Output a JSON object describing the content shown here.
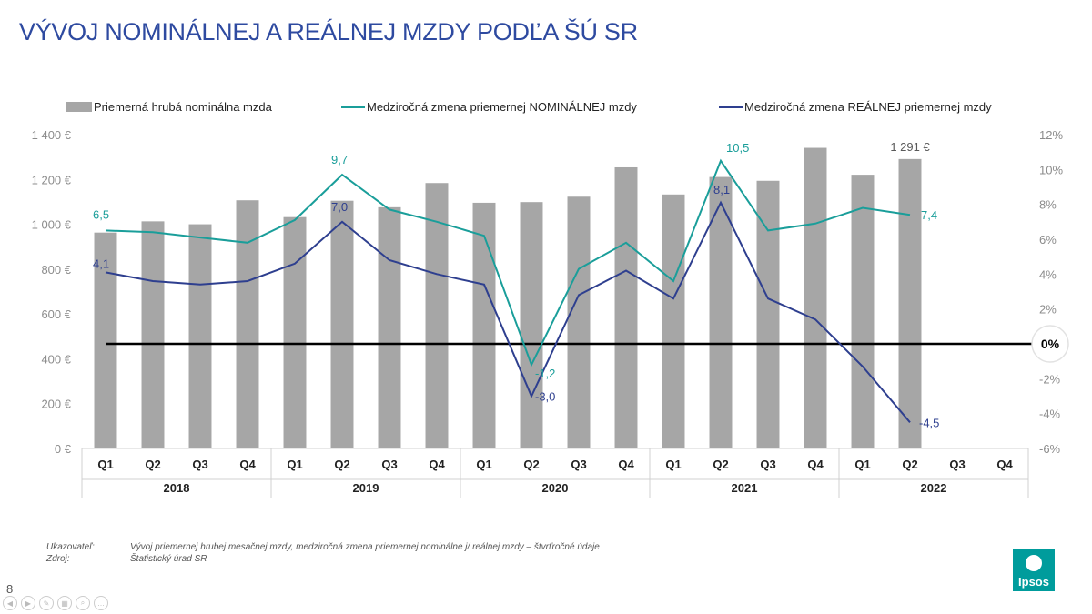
{
  "slide_title": "VÝVOJ NOMINÁLNEJ A REÁLNEJ MZDY PODĽA ŠÚ SR",
  "page_number": "8",
  "footer": {
    "indicator_label": "Ukazovateľ:",
    "indicator_text": "Vývoj priemernej hrubej mesačnej mzdy, medziročná zmena priemernej nominálne j/ reálnej mzdy – štvrťročné údaje",
    "source_label": "Zdroj:",
    "source_text": "Štatistický úrad SR"
  },
  "logo_text": "Ipsos",
  "colors": {
    "bars": "#a6a6a6",
    "nominal": "#1a9e9a",
    "real": "#2e3f8f",
    "zero_line": "#000000",
    "axis_text": "#8c8c8c",
    "title": "#2e4aa0"
  },
  "chart_data": {
    "type": "bar+line",
    "legend": {
      "bars": "Priemerná hrubá nominálna mzda",
      "nominal": "Medziročná zmena priemernej NOMINÁLNEJ mzdy",
      "real": "Medziročná zmena REÁLNEJ priemernej mzdy"
    },
    "quarters": [
      "Q1",
      "Q2",
      "Q3",
      "Q4",
      "Q1",
      "Q2",
      "Q3",
      "Q4",
      "Q1",
      "Q2",
      "Q3",
      "Q4",
      "Q1",
      "Q2",
      "Q3",
      "Q4",
      "Q1",
      "Q2",
      "Q3",
      "Q4"
    ],
    "years": [
      "2018",
      "2019",
      "2020",
      "2021",
      "2022"
    ],
    "wage_eur": [
      963,
      1013,
      1000,
      1107,
      1032,
      1105,
      1076,
      1184,
      1096,
      1099,
      1123,
      1254,
      1133,
      1211,
      1194,
      1341,
      1221,
      1291,
      null,
      null
    ],
    "nominal_pct": [
      6.5,
      6.4,
      6.1,
      5.8,
      7.1,
      9.7,
      7.7,
      7.0,
      6.2,
      -1.2,
      4.3,
      5.8,
      3.6,
      10.5,
      6.5,
      6.9,
      7.8,
      7.4,
      null,
      null
    ],
    "real_pct": [
      4.1,
      3.6,
      3.4,
      3.6,
      4.6,
      7.0,
      4.8,
      4.0,
      3.4,
      -3.0,
      2.8,
      4.2,
      2.6,
      8.1,
      2.6,
      1.4,
      -1.3,
      -4.5,
      null,
      null
    ],
    "left_axis": {
      "min": 0,
      "max": 1400,
      "step": 200,
      "ticks": [
        "0 €",
        "200 €",
        "400 €",
        "600 €",
        "800 €",
        "1 000 €",
        "1 200 €",
        "1 400 €"
      ]
    },
    "right_axis": {
      "min": -6,
      "max": 12,
      "step": 2,
      "ticks": [
        "-6%",
        "-4%",
        "-2%",
        "0%",
        "2%",
        "4%",
        "6%",
        "8%",
        "10%",
        "12%"
      ]
    },
    "zero_label": "0%",
    "value_labels": [
      {
        "series": "nominal",
        "index": 0,
        "text": "6,5"
      },
      {
        "series": "nominal",
        "index": 5,
        "text": "9,7"
      },
      {
        "series": "nominal",
        "index": 9,
        "text": "-1,2"
      },
      {
        "series": "nominal",
        "index": 13,
        "text": "10,5"
      },
      {
        "series": "nominal",
        "index": 17,
        "text": "7,4"
      },
      {
        "series": "real",
        "index": 0,
        "text": "4,1"
      },
      {
        "series": "real",
        "index": 5,
        "text": "7,0"
      },
      {
        "series": "real",
        "index": 9,
        "text": "-3,0"
      },
      {
        "series": "real",
        "index": 13,
        "text": "8,1"
      },
      {
        "series": "real",
        "index": 17,
        "text": "-4,5"
      },
      {
        "series": "bars",
        "index": 17,
        "text": "1 291 €"
      }
    ]
  }
}
